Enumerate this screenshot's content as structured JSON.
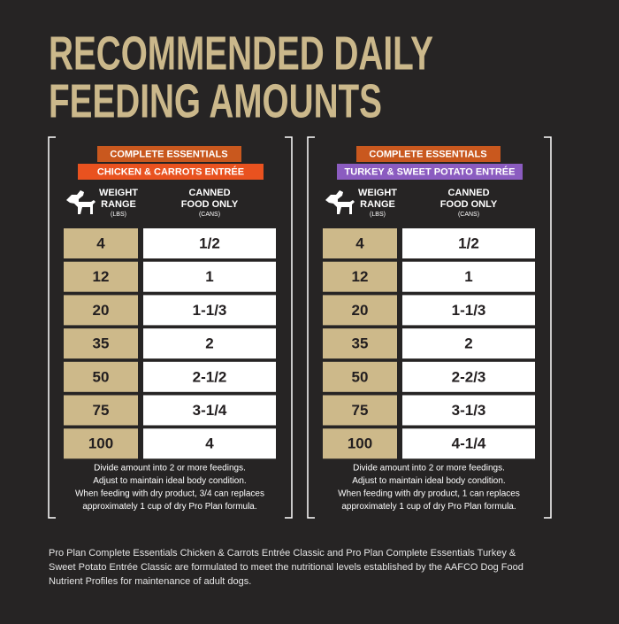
{
  "title_lines": [
    "RECOMMENDED DAILY",
    "FEEDING AMOUNTS"
  ],
  "panels": [
    {
      "badge": "COMPLETE ESSENTIALS",
      "product": "CHICKEN & CARROTS ENTRÉE",
      "product_color": "#e9521f",
      "weight_header": [
        "WEIGHT",
        "RANGE"
      ],
      "weight_unit": "(LBS)",
      "food_header": [
        "CANNED",
        "FOOD ONLY"
      ],
      "food_unit": "(CANS)",
      "rows": [
        [
          "4",
          "1/2"
        ],
        [
          "12",
          "1"
        ],
        [
          "20",
          "1-1/3"
        ],
        [
          "35",
          "2"
        ],
        [
          "50",
          "2-1/2"
        ],
        [
          "75",
          "3-1/4"
        ],
        [
          "100",
          "4"
        ]
      ],
      "notes": [
        "Divide amount into 2 or more feedings.",
        "Adjust to maintain ideal body condition.",
        "When feeding with dry product, 3/4 can replaces",
        "approximately 1 cup of dry Pro Plan formula."
      ]
    },
    {
      "badge": "COMPLETE ESSENTIALS",
      "product": "TURKEY & SWEET POTATO ENTRÉE",
      "product_color": "#8b5cc0",
      "weight_header": [
        "WEIGHT",
        "RANGE"
      ],
      "weight_unit": "(LBS)",
      "food_header": [
        "CANNED",
        "FOOD ONLY"
      ],
      "food_unit": "(CANS)",
      "rows": [
        [
          "4",
          "1/2"
        ],
        [
          "12",
          "1"
        ],
        [
          "20",
          "1-1/3"
        ],
        [
          "35",
          "2"
        ],
        [
          "50",
          "2-2/3"
        ],
        [
          "75",
          "3-1/3"
        ],
        [
          "100",
          "4-1/4"
        ]
      ],
      "notes": [
        "Divide amount into 2 or more feedings.",
        "Adjust to maintain ideal body condition.",
        "When feeding with dry product, 1 can replaces",
        "approximately 1 cup of dry Pro Plan formula."
      ]
    }
  ],
  "footnote_lines": [
    "Pro Plan Complete Essentials Chicken & Carrots Entrée Classic and Pro Plan Complete Essentials Turkey &",
    "Sweet Potato Entrée Classic are formulated to meet the nutritional levels established by the AAFCO Dog Food",
    "Nutrient Profiles for maintenance of adult dogs."
  ]
}
